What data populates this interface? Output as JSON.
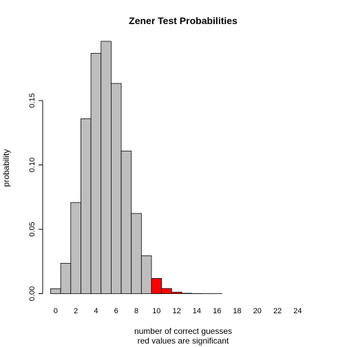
{
  "chart_data": {
    "type": "bar",
    "title": "Zener Test Probabilities",
    "xlabel": "number of correct guesses",
    "xlabel_sub": "red values are significant",
    "ylabel": "probability",
    "ylim": [
      0,
      0.2
    ],
    "yticks": [
      0.0,
      0.05,
      0.1,
      0.15
    ],
    "ytick_labels": [
      "0.00",
      "0.05",
      "0.10",
      "0.15"
    ],
    "categories": [
      0,
      1,
      2,
      3,
      4,
      5,
      6,
      7,
      8,
      9,
      10,
      11,
      12,
      13,
      14,
      15,
      16,
      17,
      18,
      19,
      20,
      21,
      22,
      23,
      24,
      25
    ],
    "xtick_labels": [
      "0",
      "2",
      "4",
      "6",
      "8",
      "10",
      "12",
      "14",
      "16",
      "18",
      "20",
      "22",
      "24"
    ],
    "values": [
      0.0038,
      0.0236,
      0.0708,
      0.1358,
      0.1867,
      0.196,
      0.1633,
      0.1108,
      0.0623,
      0.0294,
      0.0118,
      0.004,
      0.0012,
      0.0003,
      0.0001,
      2e-05,
      3e-06,
      5e-07,
      6e-08,
      6e-09,
      5e-10,
      3e-11,
      1e-12,
      0.0,
      0.0,
      0.0
    ],
    "significant_from": 10,
    "colors": {
      "normal": "#bebebe",
      "significant": "#ff0000",
      "axis": "#000000"
    },
    "grid": false,
    "legend": "none"
  }
}
